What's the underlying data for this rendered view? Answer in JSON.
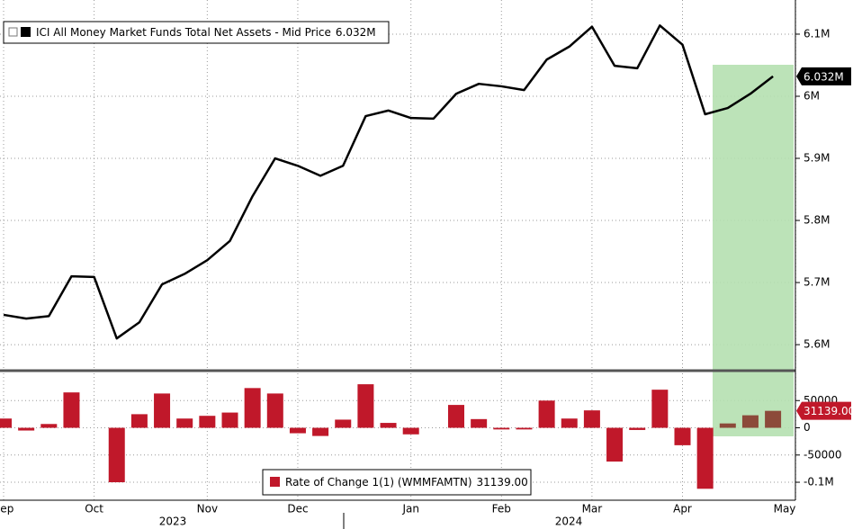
{
  "chart_data": [
    {
      "type": "line",
      "series": [
        {
          "name": "ICI All Money Market Funds Total Net Assets - Mid Price",
          "color": "#000000",
          "values": [
            5.648,
            5.642,
            5.646,
            5.71,
            5.709,
            5.61,
            5.636,
            5.697,
            5.714,
            5.736,
            5.767,
            5.839,
            5.9,
            5.888,
            5.872,
            5.888,
            5.968,
            5.977,
            5.965,
            5.964,
            6.004,
            6.02,
            6.016,
            6.01,
            6.059,
            6.08,
            6.112,
            6.049,
            6.045,
            6.114,
            6.083,
            5.971,
            5.981,
            6.004,
            6.032,
            null
          ],
          "value_labels": [
            null,
            null,
            null,
            null,
            null,
            null,
            null,
            null,
            null,
            null,
            null,
            null,
            null,
            null,
            null,
            null,
            null,
            null,
            null,
            null,
            null,
            null,
            null,
            null,
            null,
            null,
            null,
            null,
            null,
            null,
            null,
            null,
            null,
            null,
            "6.032M",
            null
          ]
        }
      ],
      "categories": [
        "Sep",
        null,
        null,
        null,
        "Oct",
        null,
        null,
        null,
        null,
        "Nov",
        null,
        null,
        null,
        "Dec",
        null,
        null,
        null,
        null,
        "Jan",
        null,
        null,
        null,
        "Feb",
        null,
        null,
        null,
        "Mar",
        null,
        null,
        null,
        "Apr",
        null,
        null,
        null,
        null,
        "May"
      ],
      "years": [
        "2023",
        "2024"
      ],
      "ylim": [
        5.561,
        6.155
      ],
      "yticks": [
        {
          "value": 5.6,
          "label": "5.6M"
        },
        {
          "value": 5.7,
          "label": "5.7M"
        },
        {
          "value": 5.8,
          "label": "5.8M"
        },
        {
          "value": 5.9,
          "label": "5.9M"
        },
        {
          "value": 6.0,
          "label": "6M"
        },
        {
          "value": 6.1,
          "label": "6.1M"
        }
      ],
      "grid": true
    },
    {
      "type": "bar",
      "series": [
        {
          "name": "Rate of Change 1(1) (WMMFAMTN)",
          "color": "#c0182a",
          "values": [
            17000,
            -5000,
            7000,
            65000,
            0,
            -100000,
            25000,
            63000,
            17000,
            22000,
            28000,
            73000,
            63000,
            -10000,
            -15000,
            15000,
            80000,
            9000,
            -12000,
            0,
            42000,
            16000,
            -3000,
            -3000,
            50000,
            17000,
            32000,
            -62000,
            -4000,
            70000,
            -32000,
            -112000,
            8000,
            23000,
            31139,
            null
          ],
          "value_labels": [
            null,
            null,
            null,
            null,
            null,
            null,
            null,
            null,
            null,
            null,
            null,
            null,
            null,
            null,
            null,
            null,
            null,
            null,
            null,
            null,
            null,
            null,
            null,
            null,
            null,
            null,
            null,
            null,
            null,
            null,
            null,
            null,
            null,
            null,
            "31139.00",
            null
          ],
          "colors": [
            "#c0182a",
            "#c0182a",
            "#c0182a",
            "#c0182a",
            "#c0182a",
            "#c0182a",
            "#c0182a",
            "#c0182a",
            "#c0182a",
            "#c0182a",
            "#c0182a",
            "#c0182a",
            "#c0182a",
            "#c0182a",
            "#c0182a",
            "#c0182a",
            "#c0182a",
            "#c0182a",
            "#c0182a",
            "#c0182a",
            "#c0182a",
            "#c0182a",
            "#c0182a",
            "#c0182a",
            "#c0182a",
            "#c0182a",
            "#c0182a",
            "#c0182a",
            "#c0182a",
            "#c0182a",
            "#c0182a",
            "#c0182a",
            "#8c4a3a",
            "#8c4a3a",
            "#8c4a3a",
            "#8c4a3a"
          ]
        }
      ],
      "ylim": [
        -133000,
        100000
      ],
      "yticks": [
        {
          "value": -100000,
          "label": "-0.1M"
        },
        -50000,
        0,
        50000
      ],
      "grid": true
    }
  ]
}
